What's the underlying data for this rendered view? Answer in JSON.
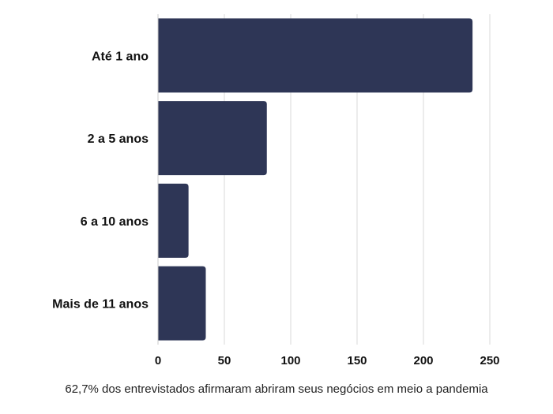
{
  "chart_data": {
    "type": "bar",
    "orientation": "horizontal",
    "categories": [
      "Até 1 ano",
      "2 a 5 anos",
      "6 a 10 anos",
      "Mais de 11 anos"
    ],
    "values": [
      237,
      82,
      23,
      36
    ],
    "xlim": [
      0,
      250
    ],
    "xticks": [
      0,
      50,
      100,
      150,
      200,
      250
    ],
    "grid": true,
    "bar_color": "#2e3656",
    "caption": "62,7% dos entrevistados afirmaram abriram seus negócios em meio a pandemia"
  }
}
